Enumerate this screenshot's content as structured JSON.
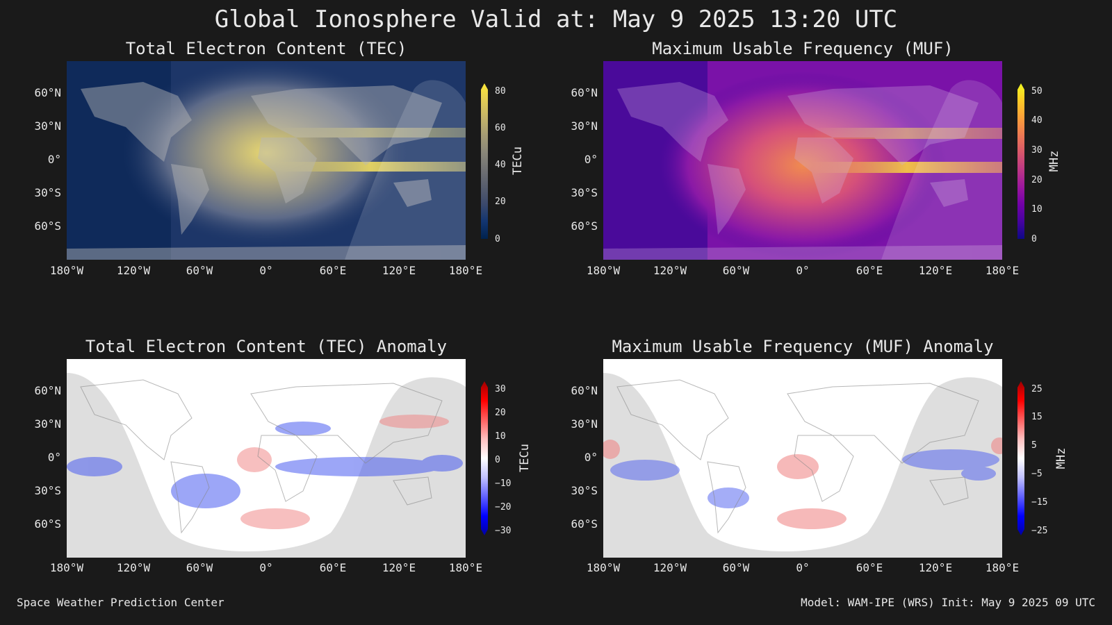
{
  "title": "Global Ionosphere Valid at: May 9 2025 13:20 UTC",
  "panels": [
    {
      "title": "Total Electron Content (TEC)",
      "units": "TECu",
      "ticks": [
        "80",
        "60",
        "40",
        "20",
        "0"
      ],
      "colormap": "cividis"
    },
    {
      "title": "Maximum Usable Frequency (MUF)",
      "units": "MHz",
      "ticks": [
        "50",
        "40",
        "30",
        "20",
        "10",
        "0"
      ],
      "colormap": "plasma"
    },
    {
      "title": "Total Electron Content (TEC) Anomaly",
      "units": "TECu",
      "ticks": [
        "30",
        "20",
        "10",
        "0",
        "−10",
        "−20",
        "−30"
      ],
      "colormap": "bwr"
    },
    {
      "title": "Maximum Usable Frequency (MUF) Anomaly",
      "units": "MHz",
      "ticks": [
        "25",
        "15",
        "5",
        "−5",
        "−15",
        "−25"
      ],
      "colormap": "bwr"
    }
  ],
  "axes": {
    "lat_labels": [
      "60°N",
      "30°N",
      "0°",
      "30°S",
      "60°S"
    ],
    "lon_labels": [
      "180°W",
      "120°W",
      "60°W",
      "0°",
      "60°E",
      "120°E",
      "180°E"
    ]
  },
  "footer": {
    "left": "Space Weather Prediction Center",
    "right": "Model: WAM-IPE (WRS) Init: May 9 2025 09 UTC"
  },
  "colors": {
    "background": "#1a1a1a",
    "text": "#e8e8e8"
  }
}
